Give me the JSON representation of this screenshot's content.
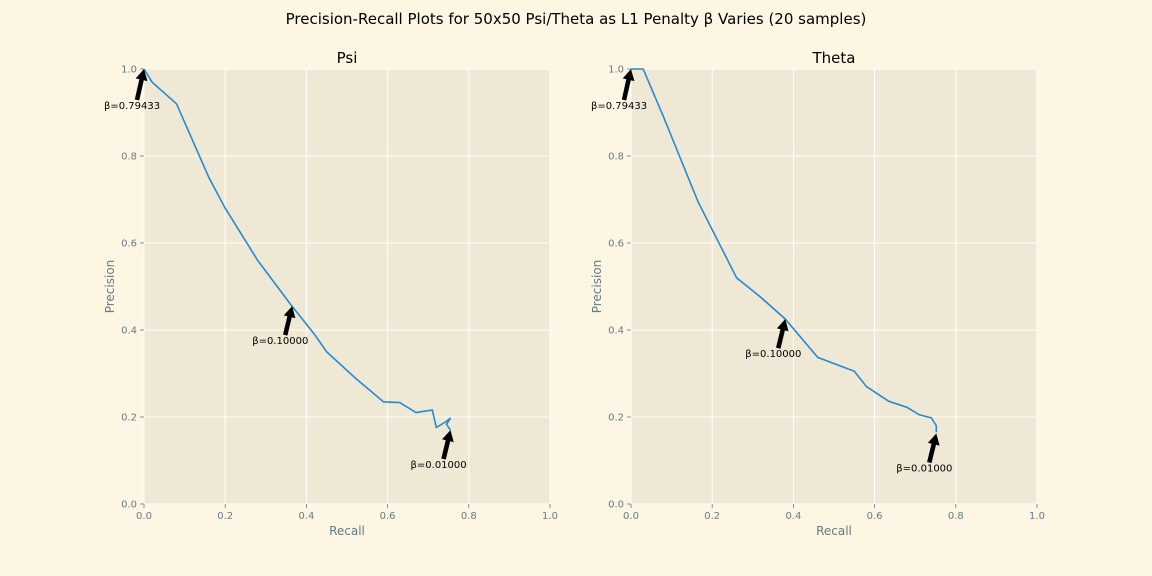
{
  "title": "Precision-Recall Plots for 50x50 Psi/Theta as L1 Penalty β Varies (20 samples)",
  "colors": {
    "figure_bg": "#fdf6e3",
    "axes_bg": "#eee8d5",
    "grid": "#ffffff",
    "line": "#268bd2",
    "tick_text": "#657b83",
    "arrow": "#000000"
  },
  "chart_data": [
    {
      "type": "line",
      "title": "Psi",
      "xlabel": "Recall",
      "ylabel": "Precision",
      "xlim": [
        0.0,
        1.0
      ],
      "ylim": [
        0.0,
        1.0
      ],
      "xticks": [
        "0.0",
        "0.2",
        "0.4",
        "0.6",
        "0.8",
        "1.0"
      ],
      "yticks": [
        "0.0",
        "0.2",
        "0.4",
        "0.6",
        "0.8",
        "1.0"
      ],
      "grid": true,
      "series": [
        {
          "x": [
            0.0,
            0.02,
            0.08,
            0.16,
            0.2,
            0.28,
            0.36,
            0.42,
            0.45,
            0.52,
            0.59,
            0.63,
            0.67,
            0.71,
            0.72,
            0.745,
            0.755,
            0.745,
            0.755
          ],
          "y": [
            1.0,
            0.97,
            0.92,
            0.75,
            0.68,
            0.56,
            0.46,
            0.39,
            0.35,
            0.29,
            0.235,
            0.233,
            0.21,
            0.216,
            0.176,
            0.19,
            0.198,
            0.183,
            0.17
          ]
        }
      ],
      "annotations": [
        {
          "text": "β=0.79433",
          "x": 0.0,
          "y": 1.0
        },
        {
          "text": "β=0.10000",
          "x": 0.365,
          "y": 0.455
        },
        {
          "text": "β=0.01000",
          "x": 0.755,
          "y": 0.17
        }
      ]
    },
    {
      "type": "line",
      "title": "Theta",
      "xlabel": "Recall",
      "ylabel": "Precision",
      "xlim": [
        0.0,
        1.0
      ],
      "ylim": [
        0.0,
        1.0
      ],
      "xticks": [
        "0.0",
        "0.2",
        "0.4",
        "0.6",
        "0.8",
        "1.0"
      ],
      "yticks": [
        "0.0",
        "0.2",
        "0.4",
        "0.6",
        "0.8",
        "1.0"
      ],
      "grid": true,
      "series": [
        {
          "x": [
            0.0,
            0.03,
            0.08,
            0.165,
            0.26,
            0.32,
            0.38,
            0.46,
            0.55,
            0.58,
            0.635,
            0.68,
            0.71,
            0.74,
            0.752,
            0.752
          ],
          "y": [
            1.0,
            1.0,
            0.89,
            0.695,
            0.52,
            0.475,
            0.425,
            0.337,
            0.305,
            0.27,
            0.236,
            0.222,
            0.205,
            0.198,
            0.18,
            0.165
          ]
        }
      ],
      "annotations": [
        {
          "text": "β=0.79433",
          "x": 0.0,
          "y": 1.0
        },
        {
          "text": "β=0.10000",
          "x": 0.38,
          "y": 0.425
        },
        {
          "text": "β=0.01000",
          "x": 0.752,
          "y": 0.162
        }
      ]
    }
  ]
}
